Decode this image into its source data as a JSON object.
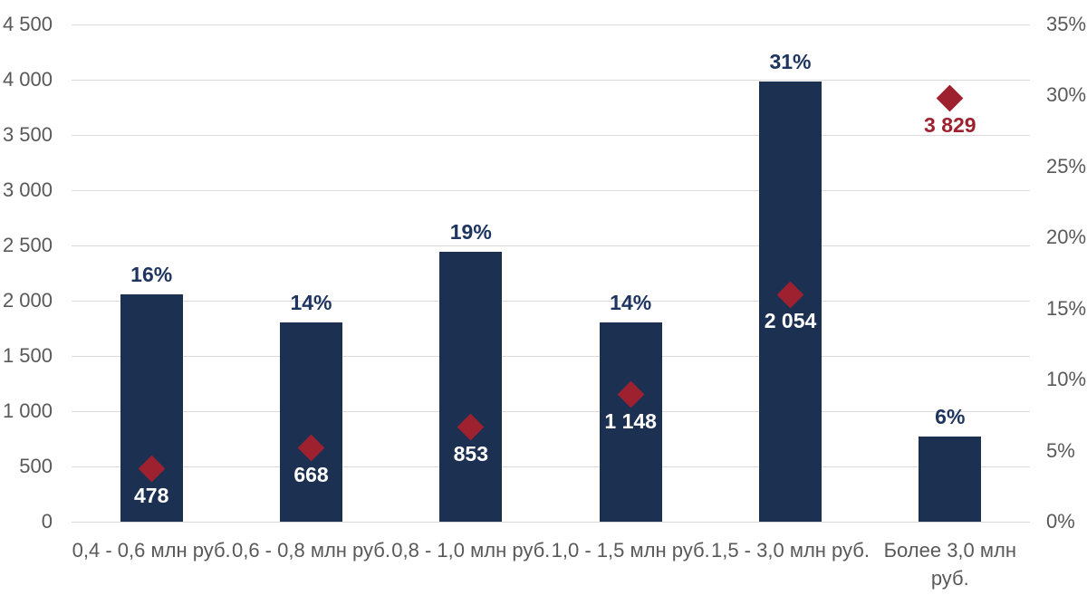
{
  "chart_data": {
    "type": "bar",
    "title": "",
    "categories": [
      "0,4 - 0,6 млн руб.",
      "0,6 - 0,8 млн руб.",
      "0,8 - 1,0 млн руб.",
      "1,0 - 1,5 млн руб.",
      "1,5 - 3,0 млн руб.",
      "Более 3,0 млн\nруб."
    ],
    "series": [
      {
        "name": "percent_bars",
        "type": "bar",
        "axis": "right",
        "values": [
          16,
          14,
          19,
          14,
          31,
          6
        ],
        "data_labels": [
          "16%",
          "14%",
          "19%",
          "14%",
          "31%",
          "6%"
        ],
        "color": "#1c3052",
        "label_color": "#1e3560"
      },
      {
        "name": "value_markers",
        "type": "scatter",
        "marker": "diamond",
        "axis": "left",
        "values": [
          478,
          668,
          853,
          1148,
          2054,
          3829
        ],
        "data_labels": [
          "478",
          "668",
          "853",
          "1 148",
          "2 054",
          "3 829"
        ],
        "color": "#9e2130",
        "label_color_inside_bar": "#ffffff",
        "label_color_outside_bar": "#9e2130"
      }
    ],
    "axes": {
      "left": {
        "min": 0,
        "max": 4500,
        "step": 500,
        "tick_labels": [
          "0",
          "500",
          "1 000",
          "1 500",
          "2 000",
          "2 500",
          "3 000",
          "3 500",
          "4 000",
          "4 500"
        ]
      },
      "right": {
        "min": 0,
        "max": 35,
        "step": 5,
        "tick_labels": [
          "0%",
          "5%",
          "10%",
          "15%",
          "20%",
          "25%",
          "30%",
          "35%"
        ]
      }
    },
    "grid": {
      "show": true,
      "color": "#d9d9d9"
    },
    "legend": "none",
    "axis_text_color": "#595959",
    "background": "#ffffff"
  }
}
